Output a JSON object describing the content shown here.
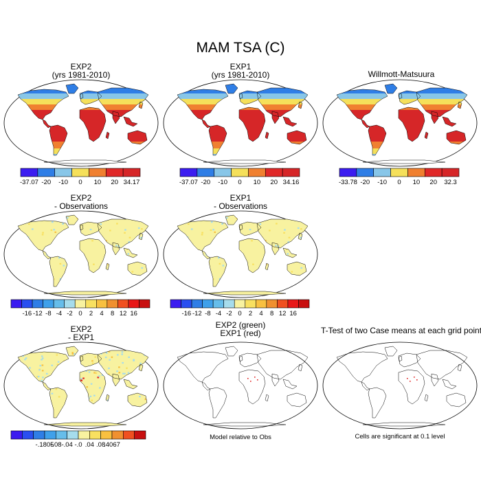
{
  "main_title": "MAM TSA (C)",
  "panels": {
    "exp2": {
      "title_line1": "EXP2",
      "title_line2": "(yrs 1981-2010)"
    },
    "exp1": {
      "title_line1": "EXP1",
      "title_line2": "(yrs 1981-2010)"
    },
    "obs": {
      "title_line1": "Willmott-Matsuura"
    },
    "exp2_obs": {
      "title_line1": "EXP2",
      "title_line2": "- Observations"
    },
    "exp1_obs": {
      "title_line1": "EXP1",
      "title_line2": "- Observations"
    },
    "exp2_exp1": {
      "title_line1": "EXP2",
      "title_line2": "- EXP1"
    },
    "green_red": {
      "title_line1": "EXP2 (green)",
      "title_line2": "EXP1 (red)",
      "note": "Model relative to Obs"
    },
    "ttest": {
      "title_line1": "T-Test of two Case means at each grid point",
      "note": "Cells are significant at 0.1 level"
    }
  },
  "colorbars": {
    "abs": {
      "colors": [
        "#3b1cf0",
        "#2f7ee6",
        "#88c6e8",
        "#f5e05a",
        "#f08030",
        "#e02828",
        "#d62628"
      ],
      "exp2_labels": [
        "-37.07",
        "-20",
        "-10",
        "0",
        "10",
        "20",
        "34.17"
      ],
      "exp1_labels": [
        "-37.07",
        "-20",
        "-10",
        "0",
        "10",
        "20",
        "34.16"
      ],
      "obs_labels": [
        "-33.78",
        "-20",
        "-10",
        "0",
        "10",
        "20",
        "32.3"
      ]
    },
    "diff": {
      "colors": [
        "#3b1cf0",
        "#2a4ff0",
        "#2f7ee6",
        "#3fa0ea",
        "#66bdea",
        "#a6dcec",
        "#f8f2a0",
        "#f8e060",
        "#f8c040",
        "#f09030",
        "#f05020",
        "#e81818",
        "#c81010"
      ],
      "labels": [
        "-16",
        "-12",
        "-8",
        "-4",
        "-2",
        "0",
        "2",
        "4",
        "8",
        "12",
        "16"
      ]
    },
    "expdiff": {
      "colors": [
        "#3b1cf0",
        "#2a4ff0",
        "#2f7ee6",
        "#3fa0ea",
        "#66bdea",
        "#a6dcec",
        "#f8f2a0",
        "#f8e060",
        "#f8c040",
        "#f09030",
        "#f05020",
        "#c81010"
      ],
      "labels": [
        "-.1805",
        "-.08",
        "-.04",
        "-.0",
        ".04",
        ".08",
        ".4067"
      ]
    }
  },
  "map_colors": {
    "ocean": "#ffffff",
    "cold": "#2f7ee6",
    "cool": "#88c6e8",
    "mild": "#f5e05a",
    "warm": "#f08030",
    "hot": "#d62628",
    "diff_pale": "#f8f2a0",
    "diff_lightblue": "#a6dcec",
    "diff_red": "#e02020",
    "sig": "#e02020"
  }
}
